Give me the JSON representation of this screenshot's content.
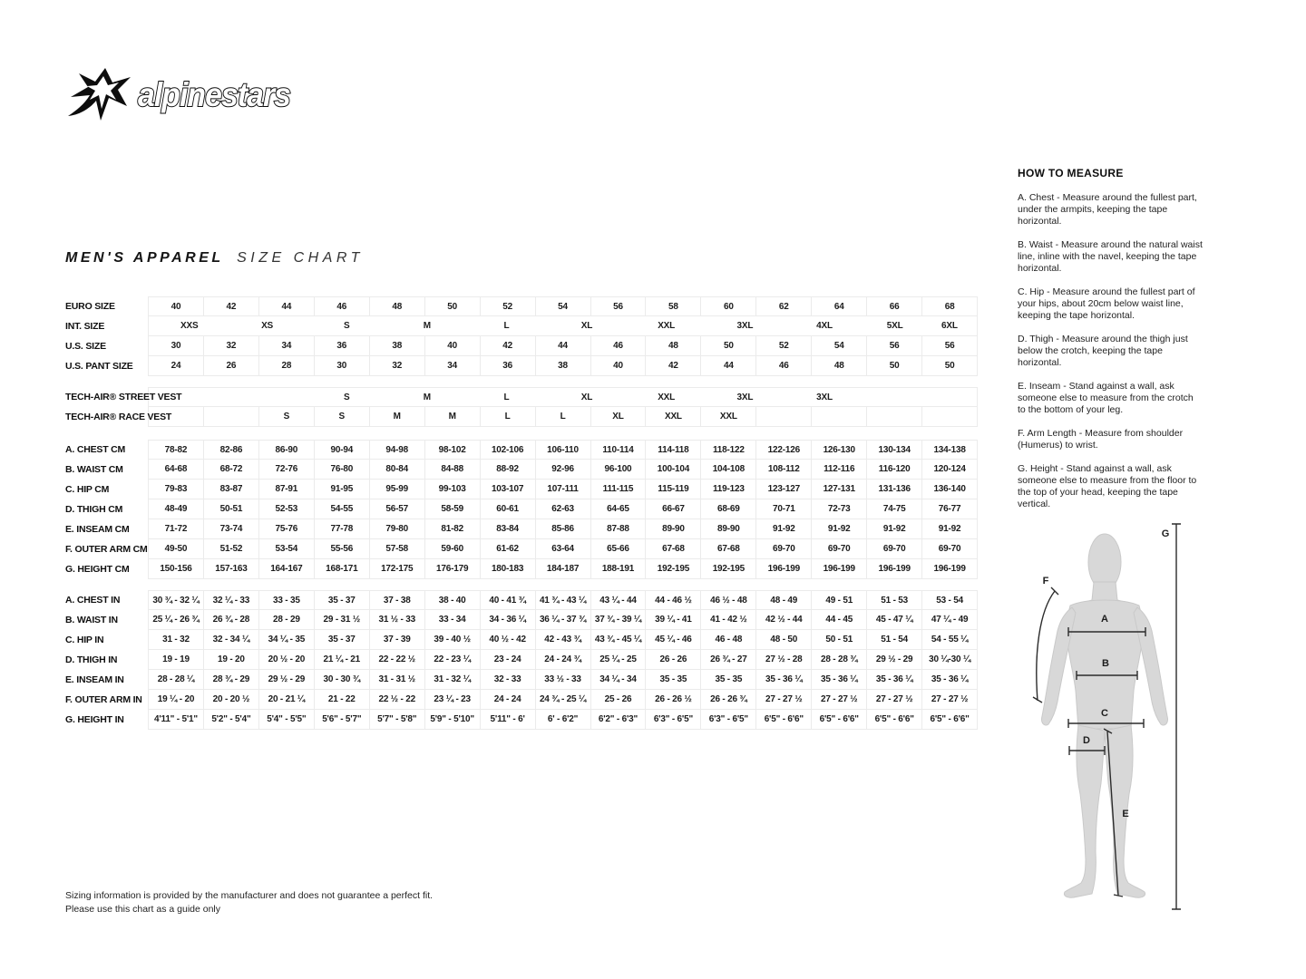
{
  "brand": {
    "logo_text": "alpinestars"
  },
  "title": {
    "primary": "MEN'S APPAREL",
    "secondary": "SIZE CHART"
  },
  "table": {
    "rows": [
      {
        "label": "EURO SIZE",
        "type": "cols",
        "values": [
          "40",
          "42",
          "44",
          "46",
          "48",
          "50",
          "52",
          "54",
          "56",
          "58",
          "60",
          "62",
          "64",
          "66",
          "68"
        ]
      },
      {
        "label": "INT. SIZE",
        "type": "float",
        "floats": [
          {
            "t": "XXS",
            "p": 4.9
          },
          {
            "t": "XS",
            "p": 14.3
          },
          {
            "t": "S",
            "p": 23.9
          },
          {
            "t": "M",
            "p": 33.6
          },
          {
            "t": "L",
            "p": 43.2
          },
          {
            "t": "XL",
            "p": 52.9
          },
          {
            "t": "XXL",
            "p": 62.5
          },
          {
            "t": "3XL",
            "p": 72.0
          },
          {
            "t": "4XL",
            "p": 81.6
          },
          {
            "t": "5XL",
            "p": 90.1
          },
          {
            "t": "6XL",
            "p": 96.7
          }
        ]
      },
      {
        "label": "U.S. SIZE",
        "type": "cols",
        "values": [
          "30",
          "32",
          "34",
          "36",
          "38",
          "40",
          "42",
          "44",
          "46",
          "48",
          "50",
          "52",
          "54",
          "56",
          "56"
        ]
      },
      {
        "label": "U.S. PANT SIZE",
        "type": "cols",
        "values": [
          "24",
          "26",
          "28",
          "30",
          "32",
          "34",
          "36",
          "38",
          "40",
          "42",
          "44",
          "46",
          "48",
          "50",
          "50"
        ]
      },
      {
        "label": "TECH-AIR® STREET VEST",
        "type": "float",
        "gap": 12,
        "floats": [
          {
            "t": "S",
            "p": 23.9
          },
          {
            "t": "M",
            "p": 33.6
          },
          {
            "t": "L",
            "p": 43.2
          },
          {
            "t": "XL",
            "p": 52.9
          },
          {
            "t": "XXL",
            "p": 62.5
          },
          {
            "t": "3XL",
            "p": 72.0
          },
          {
            "t": "3XL",
            "p": 81.6
          }
        ]
      },
      {
        "label": "TECH-AIR® RACE VEST",
        "type": "cols",
        "values": [
          "",
          "",
          "S",
          "S",
          "M",
          "M",
          "L",
          "L",
          "XL",
          "XXL",
          "XXL",
          "",
          "",
          "",
          ""
        ]
      },
      {
        "label": "A. CHEST CM",
        "type": "cols",
        "gap": 14,
        "values": [
          "78-82",
          "82-86",
          "86-90",
          "90-94",
          "94-98",
          "98-102",
          "102-106",
          "106-110",
          "110-114",
          "114-118",
          "118-122",
          "122-126",
          "126-130",
          "130-134",
          "134-138"
        ]
      },
      {
        "label": "B. WAIST CM",
        "type": "cols",
        "values": [
          "64-68",
          "68-72",
          "72-76",
          "76-80",
          "80-84",
          "84-88",
          "88-92",
          "92-96",
          "96-100",
          "100-104",
          "104-108",
          "108-112",
          "112-116",
          "116-120",
          "120-124"
        ]
      },
      {
        "label": "C. HIP CM",
        "type": "cols",
        "values": [
          "79-83",
          "83-87",
          "87-91",
          "91-95",
          "95-99",
          "99-103",
          "103-107",
          "107-111",
          "111-115",
          "115-119",
          "119-123",
          "123-127",
          "127-131",
          "131-136",
          "136-140"
        ]
      },
      {
        "label": "D. THIGH CM",
        "type": "cols",
        "values": [
          "48-49",
          "50-51",
          "52-53",
          "54-55",
          "56-57",
          "58-59",
          "60-61",
          "62-63",
          "64-65",
          "66-67",
          "68-69",
          "70-71",
          "72-73",
          "74-75",
          "76-77"
        ]
      },
      {
        "label": "E. INSEAM CM",
        "type": "cols",
        "values": [
          "71-72",
          "73-74",
          "75-76",
          "77-78",
          "79-80",
          "81-82",
          "83-84",
          "85-86",
          "87-88",
          "89-90",
          "89-90",
          "91-92",
          "91-92",
          "91-92",
          "91-92"
        ]
      },
      {
        "label": "F. OUTER ARM CM",
        "type": "cols",
        "wrap": true,
        "values": [
          "49-50",
          "51-52",
          "53-54",
          "55-56",
          "57-58",
          "59-60",
          "61-62",
          "63-64",
          "65-66",
          "67-68",
          "67-68",
          "69-70",
          "69-70",
          "69-70",
          "69-70"
        ]
      },
      {
        "label": "G. HEIGHT CM",
        "type": "cols",
        "values": [
          "150-156",
          "157-163",
          "164-167",
          "168-171",
          "172-175",
          "176-179",
          "180-183",
          "184-187",
          "188-191",
          "192-195",
          "192-195",
          "196-199",
          "196-199",
          "196-199",
          "196-199"
        ]
      },
      {
        "label": "A. CHEST IN",
        "type": "cols",
        "gap": 12,
        "values": [
          "30 ¾ - 32 ¼",
          "32 ¼ - 33",
          "33 - 35",
          "35 - 37",
          "37 - 38",
          "38 - 40",
          "40 - 41 ¾",
          "41 ¾ - 43 ¼",
          "43 ¼ - 44",
          "44 - 46 ½",
          "46 ½ - 48",
          "48 - 49",
          "49 - 51",
          "51 - 53",
          "53 - 54"
        ]
      },
      {
        "label": "B. WAIST IN",
        "type": "cols",
        "values": [
          "25 ¼ - 26 ¾",
          "26 ¾ - 28",
          "28 - 29",
          "29 - 31 ½",
          "31 ½ - 33",
          "33 - 34",
          "34 - 36 ¼",
          "36 ¼ - 37 ¾",
          "37 ¾ - 39 ¼",
          "39 ¼ - 41",
          "41 - 42 ½",
          "42 ½ - 44",
          "44 - 45",
          "45 - 47 ¼",
          "47 ¼ - 49"
        ]
      },
      {
        "label": "C. HIP IN",
        "type": "cols",
        "values": [
          "31 - 32",
          "32 - 34 ¼",
          "34 ¼ - 35",
          "35 - 37",
          "37 - 39",
          "39 - 40 ½",
          "40 ½ - 42",
          "42 - 43 ¾",
          "43 ¾ - 45 ¼",
          "45 ¼ - 46",
          "46 - 48",
          "48 - 50",
          "50 - 51",
          "51 - 54",
          "54 - 55 ¼"
        ]
      },
      {
        "label": "D. THIGH IN",
        "type": "cols",
        "values": [
          "19 - 19",
          "19 - 20",
          "20 ½ - 20",
          "21 ¼ - 21",
          "22 - 22 ½",
          "22 - 23 ¼",
          "23 - 24",
          "24 - 24 ¾",
          "25 ¼ - 25",
          "26 - 26",
          "26 ¾ - 27",
          "27 ½ - 28",
          "28 - 28 ¾",
          "29 ½ - 29",
          "30 ¼-30 ¼"
        ]
      },
      {
        "label": "E. INSEAM IN",
        "type": "cols",
        "values": [
          "28 - 28 ¼",
          "28 ¾ - 29",
          "29 ½ - 29",
          "30 - 30 ¾",
          "31 - 31 ½",
          "31 - 32 ¼",
          "32 - 33",
          "33 ½ - 33",
          "34 ¼ - 34",
          "35 - 35",
          "35 - 35",
          "35 - 36 ¼",
          "35 - 36 ¼",
          "35 - 36 ¼",
          "35 - 36 ¼"
        ]
      },
      {
        "label": "F. OUTER ARM IN",
        "type": "cols",
        "wrap": true,
        "values": [
          "19 ¼ - 20",
          "20 - 20 ½",
          "20 - 21 ¼",
          "21 - 22",
          "22 ½ - 22",
          "23 ¼ - 23",
          "24 - 24",
          "24 ¾ - 25 ¼",
          "25 - 26",
          "26 - 26 ½",
          "26 - 26 ¾",
          "27 - 27 ½",
          "27 - 27 ½",
          "27 - 27 ½",
          "27 - 27 ½"
        ]
      },
      {
        "label": "G. HEIGHT IN",
        "type": "cols",
        "values": [
          "4'11\" - 5'1\"",
          "5'2\" - 5'4\"",
          "5'4\" - 5'5\"",
          "5'6\" - 5'7\"",
          "5'7\" - 5'8\"",
          "5'9\" - 5'10\"",
          "5'11\" - 6'",
          "6' - 6'2\"",
          "6'2\" - 6'3\"",
          "6'3\" - 6'5\"",
          "6'3\" - 6'5\"",
          "6'5\" - 6'6\"",
          "6'5\" - 6'6\"",
          "6'5\" - 6'6\"",
          "6'5\" - 6'6\""
        ]
      }
    ]
  },
  "guide": {
    "title": "HOW TO MEASURE",
    "items": [
      "A. Chest - Measure around the fullest part, under the armpits, keeping the tape horizontal.",
      "B. Waist - Measure around the natural waist line, inline with the navel, keeping the tape horizontal.",
      "C. Hip - Measure around the fullest part of your hips, about 20cm below waist line, keeping the tape horizontal.",
      "D. Thigh - Measure around the thigh just below the crotch, keeping the tape horizontal.",
      "E. Inseam - Stand against a wall, ask someone else to measure from the crotch to the bottom of your leg.",
      "F. Arm Length - Measure from shoulder (Humerus) to wrist.",
      "G. Height - Stand against a wall, ask someone else to measure from the floor to the top of your head, keeping the tape vertical."
    ]
  },
  "figure": {
    "labels": [
      "G",
      "F",
      "A",
      "B",
      "C",
      "D",
      "E"
    ]
  },
  "footer": {
    "line1": "Sizing information is provided by the manufacturer and does not guarantee a perfect fit.",
    "line2": "Please use this chart as a guide only"
  },
  "colors": {
    "text": "#111111",
    "grid": "#ebebeb",
    "silhouette": "#d8d8d8",
    "measure_line": "#2b2b2b"
  }
}
